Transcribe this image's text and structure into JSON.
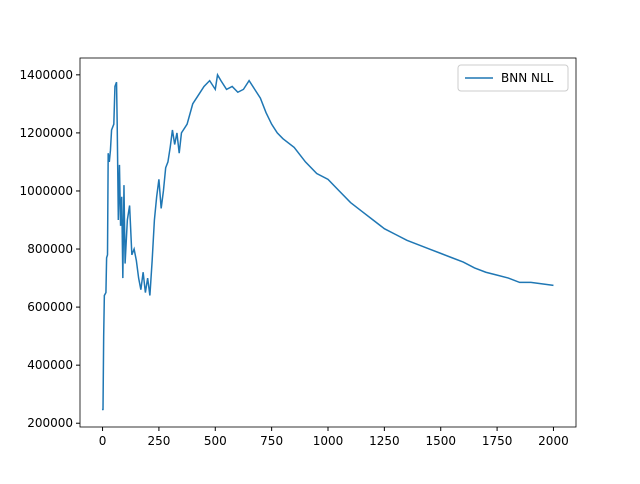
{
  "chart_data": {
    "type": "line",
    "x": [
      0,
      2,
      5,
      8,
      15,
      18,
      22,
      25,
      30,
      35,
      40,
      50,
      55,
      62,
      65,
      70,
      75,
      80,
      85,
      90,
      95,
      100,
      110,
      120,
      130,
      140,
      150,
      160,
      170,
      180,
      190,
      200,
      210,
      220,
      230,
      240,
      250,
      260,
      270,
      280,
      290,
      300,
      310,
      320,
      330,
      340,
      350,
      375,
      400,
      425,
      450,
      475,
      500,
      510,
      525,
      550,
      575,
      600,
      625,
      650,
      675,
      700,
      725,
      750,
      775,
      800,
      850,
      900,
      950,
      1000,
      1050,
      1100,
      1150,
      1200,
      1250,
      1300,
      1350,
      1400,
      1450,
      1500,
      1550,
      1600,
      1650,
      1700,
      1750,
      1800,
      1850,
      1900,
      1950,
      2000
    ],
    "series": [
      {
        "name": "BNN NLL",
        "color": "#1f77b4",
        "values": [
          250000,
          245000,
          500000,
          640000,
          650000,
          770000,
          780000,
          1130000,
          1100000,
          1140000,
          1210000,
          1230000,
          1360000,
          1375000,
          1230000,
          900000,
          1090000,
          880000,
          980000,
          700000,
          1020000,
          750000,
          900000,
          950000,
          780000,
          800000,
          760000,
          700000,
          660000,
          720000,
          650000,
          700000,
          640000,
          760000,
          900000,
          980000,
          1040000,
          940000,
          1000000,
          1080000,
          1100000,
          1150000,
          1210000,
          1160000,
          1200000,
          1130000,
          1200000,
          1230000,
          1300000,
          1330000,
          1360000,
          1380000,
          1350000,
          1400000,
          1380000,
          1350000,
          1360000,
          1340000,
          1350000,
          1380000,
          1350000,
          1320000,
          1270000,
          1230000,
          1200000,
          1180000,
          1150000,
          1100000,
          1060000,
          1040000,
          1000000,
          960000,
          930000,
          900000,
          870000,
          850000,
          830000,
          815000,
          800000,
          785000,
          770000,
          755000,
          735000,
          720000,
          710000,
          700000,
          685000,
          685000,
          680000,
          675000
        ]
      }
    ],
    "xlim": [
      -100,
      2100
    ],
    "xticks": [
      0,
      250,
      500,
      750,
      1000,
      1250,
      1500,
      1750,
      2000
    ],
    "ylim": [
      187000,
      1458000
    ],
    "yticks": [
      200000,
      400000,
      600000,
      800000,
      1000000,
      1200000,
      1400000
    ],
    "legend": "upper right"
  }
}
